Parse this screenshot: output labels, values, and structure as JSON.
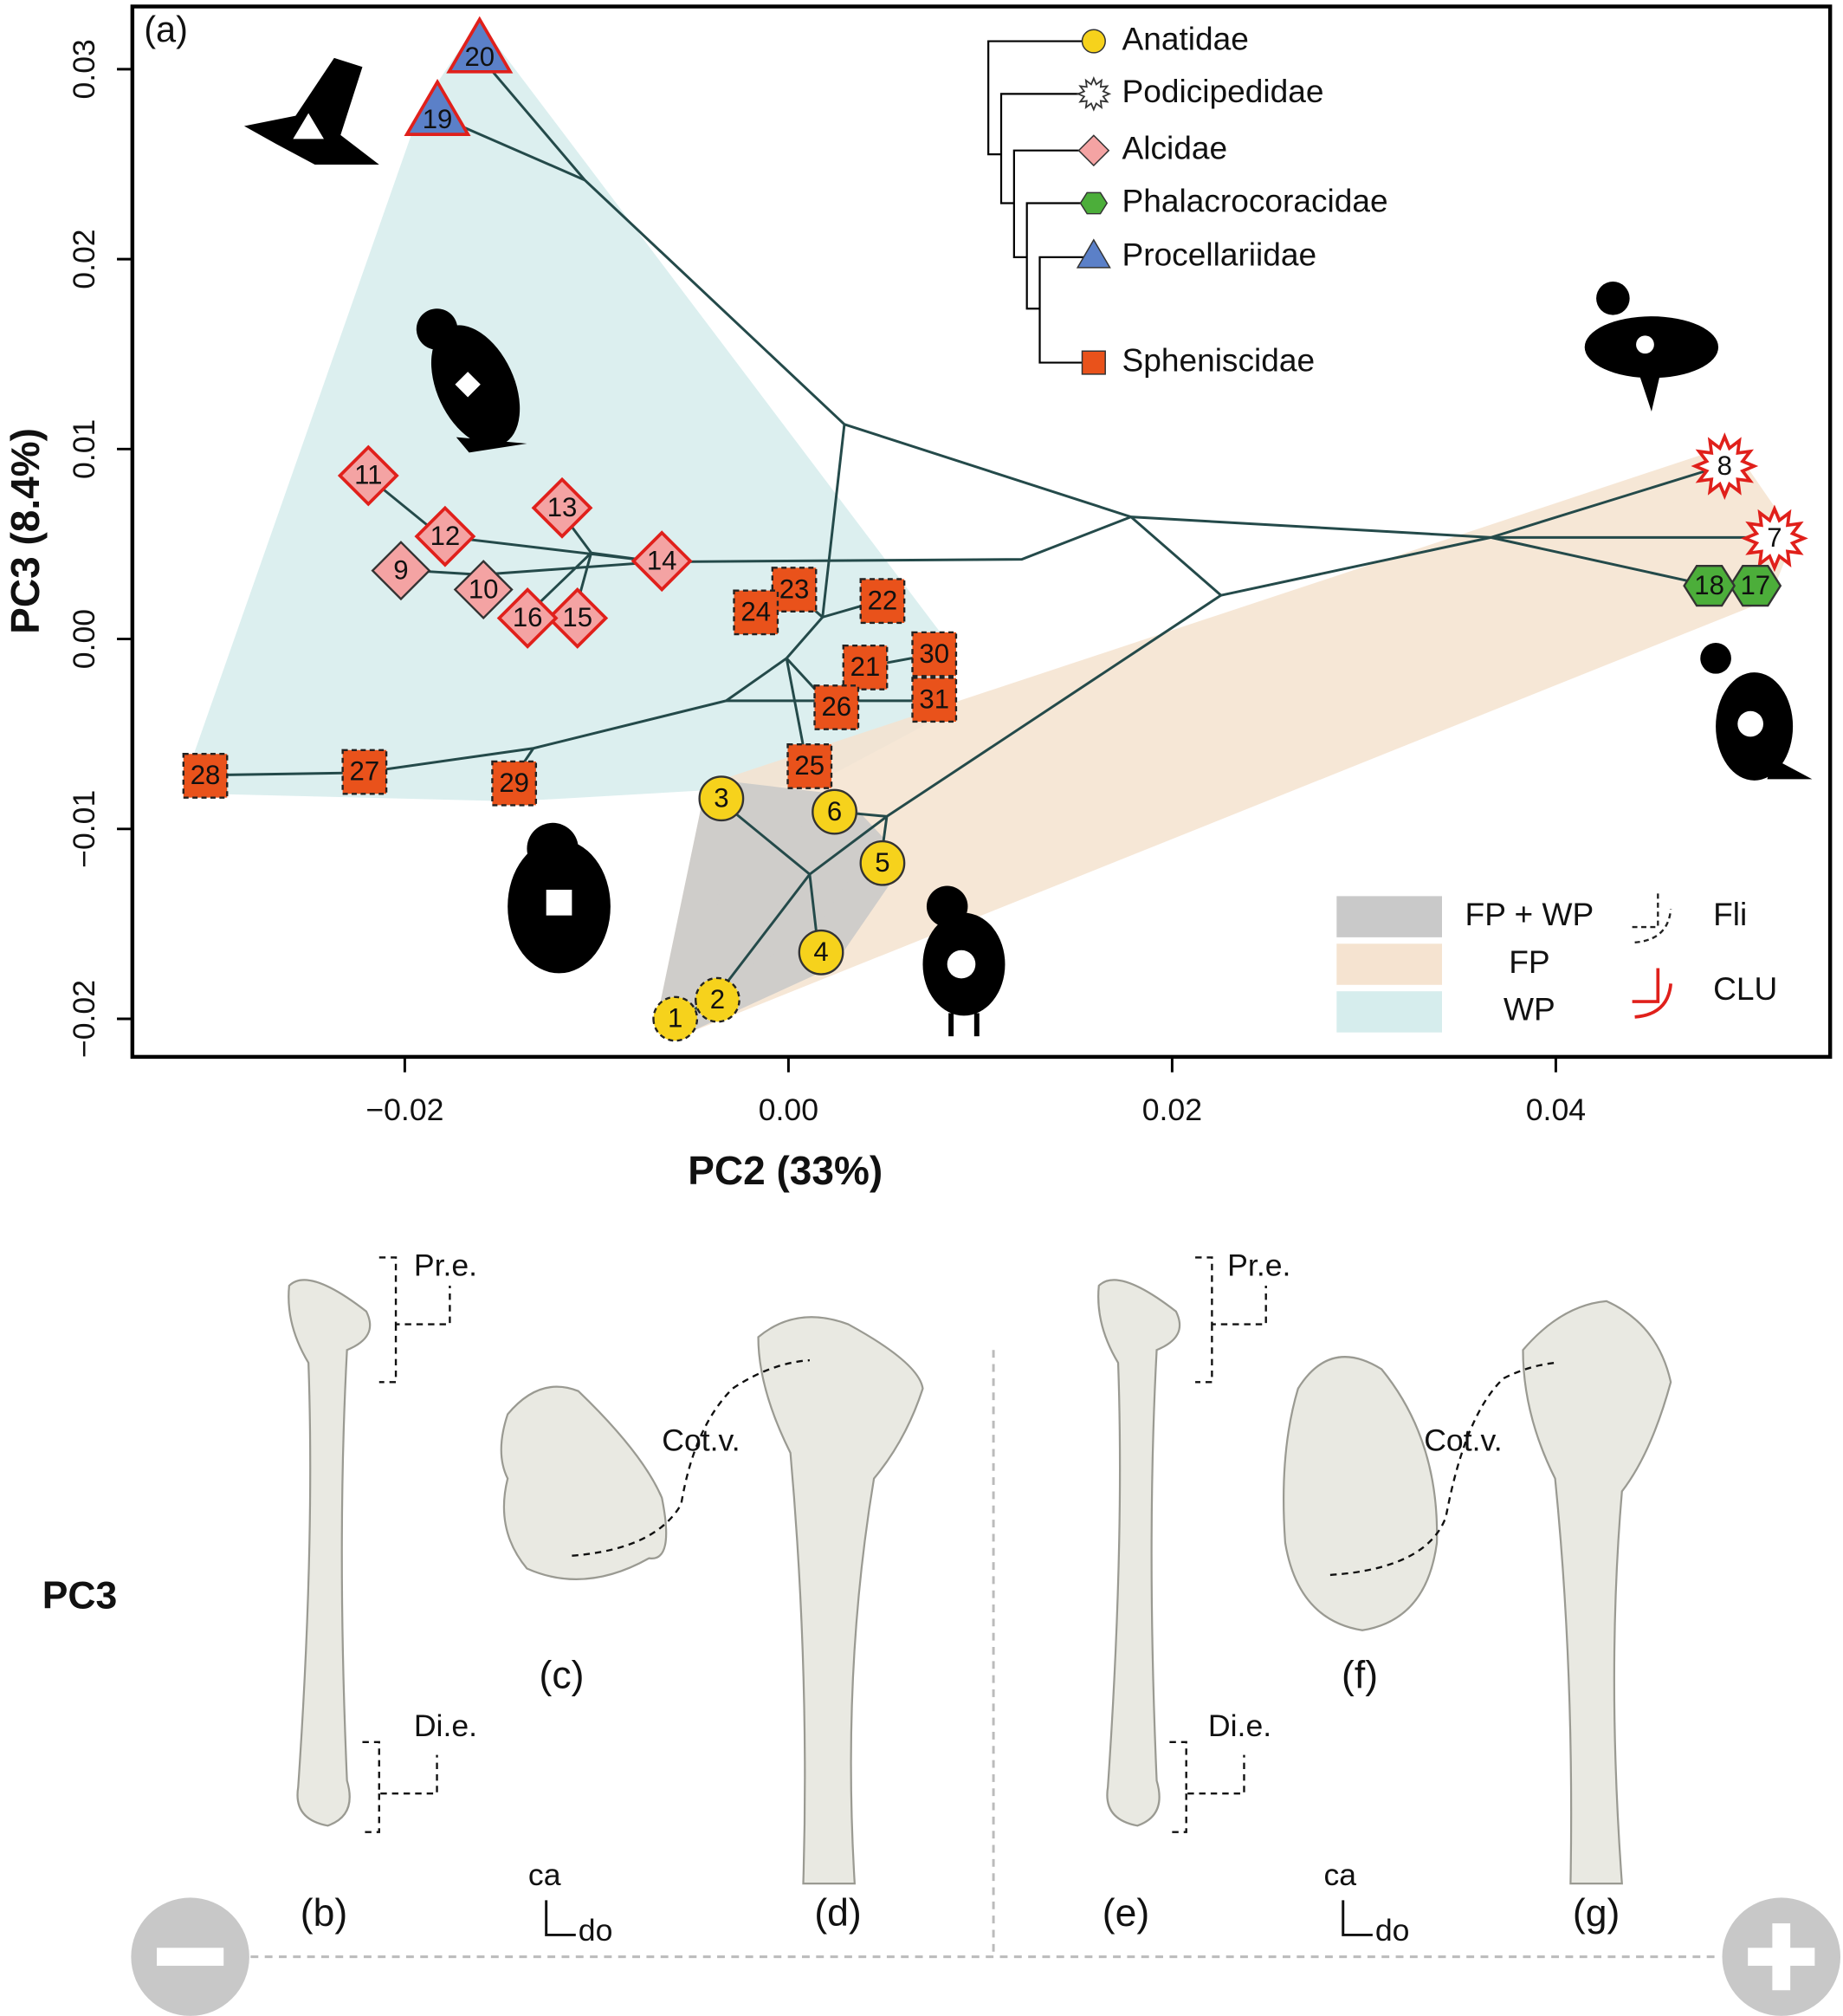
{
  "chart_data": {
    "type": "scatter",
    "panel_label": "(a)",
    "x_label": "PC2 (33%)",
    "y_label": "PC3 (8.4%)",
    "xlim": [
      -0.0342,
      0.0543
    ],
    "ylim": [
      -0.022,
      0.0333
    ],
    "xticks": [
      {
        "value": -0.02,
        "label": "−0.02"
      },
      {
        "value": 0,
        "label": "0.00"
      },
      {
        "value": 0.02,
        "label": "0.02"
      },
      {
        "value": 0.04,
        "label": "0.04"
      }
    ],
    "yticks": [
      {
        "value": -0.02,
        "label": "−0.02"
      },
      {
        "value": -0.01,
        "label": "−0.01"
      },
      {
        "value": 0,
        "label": "0.00"
      },
      {
        "value": 0.01,
        "label": "0.01"
      },
      {
        "value": 0.02,
        "label": "0.02"
      },
      {
        "value": 0.03,
        "label": "0.03"
      }
    ],
    "series": [
      {
        "name": "Anatidae",
        "color": "#f6d21c",
        "shape": "circle",
        "labels": [
          "1",
          "2",
          "3",
          "4",
          "5",
          "6"
        ],
        "x": [
          -0.0059,
          -0.0037,
          -0.0035,
          0.0017,
          0.0049,
          0.0024
        ],
        "values": [
          -0.02,
          -0.019,
          -0.0084,
          -0.0165,
          -0.0118,
          -0.0091
        ],
        "edges": [
          "dashed",
          "dashed",
          "solid",
          "solid",
          "solid",
          "solid"
        ]
      },
      {
        "name": "Podicipedidae",
        "color": "#ffffff",
        "shape": "star",
        "labels": [
          "7",
          "8"
        ],
        "x": [
          0.0514,
          0.0488
        ],
        "values": [
          0.0053,
          0.0091
        ],
        "edges": [
          "red",
          "red"
        ]
      },
      {
        "name": "Alcidae",
        "color": "#f4a3a3",
        "shape": "diamond",
        "labels": [
          "9",
          "10",
          "11",
          "12",
          "13",
          "14",
          "15",
          "16"
        ],
        "x": [
          -0.0202,
          -0.0159,
          -0.0219,
          -0.0179,
          -0.0118,
          -0.0066,
          -0.011,
          -0.0136
        ],
        "values": [
          0.0036,
          0.0026,
          0.0086,
          0.0054,
          0.0069,
          0.0041,
          0.0011,
          0.0011
        ],
        "edges": [
          "solid",
          "solid",
          "red",
          "red",
          "red",
          "red",
          "red",
          "red"
        ]
      },
      {
        "name": "Phalacrocoracidae",
        "color": "#4cae3a",
        "shape": "hexagon",
        "labels": [
          "17",
          "18"
        ],
        "x": [
          0.0504,
          0.048
        ],
        "values": [
          0.0028,
          0.0028
        ],
        "edges": [
          "solid",
          "solid"
        ]
      },
      {
        "name": "Procellariidae",
        "color": "#5b80c8",
        "shape": "triangle",
        "labels": [
          "19",
          "20"
        ],
        "x": [
          -0.0183,
          -0.0161
        ],
        "values": [
          0.0276,
          0.0309
        ],
        "edges": [
          "red",
          "red"
        ]
      },
      {
        "name": "Spheniscidae",
        "color": "#e9521b",
        "shape": "square",
        "labels": [
          "21",
          "22",
          "23",
          "24",
          "25",
          "26",
          "27",
          "28",
          "29",
          "30",
          "31"
        ],
        "x": [
          0.004,
          0.0049,
          0.0003,
          -0.0017,
          0.0011,
          0.0025,
          -0.0221,
          -0.0304,
          -0.0143,
          0.0076,
          0.0076
        ],
        "values": [
          -0.0015,
          0.002,
          0.0026,
          0.0014,
          -0.0067,
          -0.0036,
          -0.007,
          -0.0072,
          -0.0076,
          -0.0008,
          -0.0032
        ],
        "edges": [
          "dashed",
          "dashed",
          "dashed",
          "dashed",
          "dashed",
          "dashed",
          "dashed",
          "dashed",
          "dashed",
          "dashed",
          "dashed"
        ]
      }
    ],
    "hulls": [
      {
        "name": "WP",
        "color": "#d6eded",
        "series": [
          2,
          4,
          5
        ]
      },
      {
        "name": "FP",
        "color": "#f5e3d0",
        "series": [
          0,
          1,
          3
        ]
      },
      {
        "name": "FP + WP",
        "color": "#c9c9c9",
        "series": [
          0
        ]
      }
    ],
    "edge_legend": [
      {
        "label": "Fli",
        "edge": "dashed"
      },
      {
        "label": "CLU",
        "edge": "red"
      }
    ]
  },
  "bones": {
    "row_label": "PC3",
    "left": {
      "views": [
        "(b)",
        "(c)",
        "(d)"
      ],
      "proximal": "Pr.e.",
      "distal": "Di.e.",
      "cotyla": "Cot.v.",
      "axis_up": "ca",
      "axis_right": "do"
    },
    "right": {
      "views": [
        "(e)",
        "(f)",
        "(g)"
      ],
      "proximal": "Pr.e.",
      "distal": "Di.e.",
      "cotyla": "Cot.v.",
      "axis_up": "ca",
      "axis_right": "do"
    }
  }
}
